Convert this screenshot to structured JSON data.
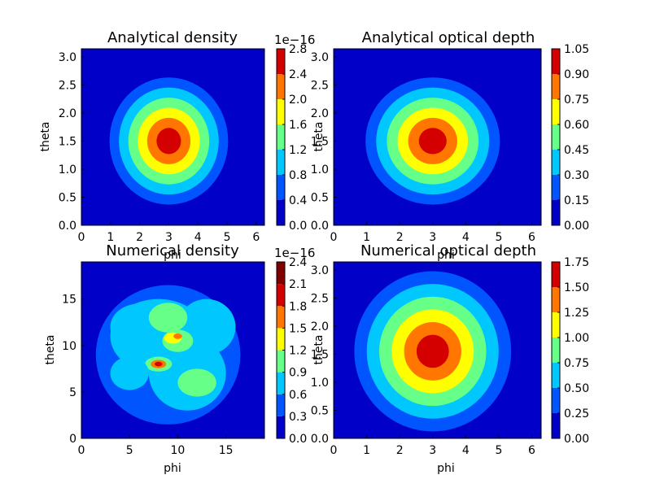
{
  "chart_data": [
    {
      "type": "contour",
      "title": "Analytical density",
      "xlabel": "phi",
      "ylabel": "theta",
      "xlim": [
        0,
        6.283
      ],
      "ylim": [
        0,
        3.1416
      ],
      "xticks": [
        "0",
        "1",
        "2",
        "3",
        "4",
        "5",
        "6"
      ],
      "yticks": [
        "0.0",
        "0.5",
        "1.0",
        "1.5",
        "2.0",
        "2.5",
        "3.0"
      ],
      "colorbar_ticks": [
        "0.0",
        "0.4",
        "0.8",
        "1.2",
        "1.6",
        "2.0",
        "2.4",
        "2.8"
      ],
      "colorbar_offset": "1e−16",
      "peak": {
        "x": 3.0,
        "y": 1.5,
        "value": 2.8
      },
      "levels": [
        0.0,
        0.4,
        0.8,
        1.2,
        1.6,
        2.0,
        2.4,
        2.8
      ]
    },
    {
      "type": "contour",
      "title": "Analytical optical depth",
      "xlabel": "phi",
      "ylabel": "theta",
      "xlim": [
        0,
        6.283
      ],
      "ylim": [
        0,
        3.1416
      ],
      "xticks": [
        "0",
        "1",
        "2",
        "3",
        "4",
        "5",
        "6"
      ],
      "yticks": [
        "0.0",
        "0.5",
        "1.0",
        "1.5",
        "2.0",
        "2.5",
        "3.0"
      ],
      "colorbar_ticks": [
        "0.00",
        "0.15",
        "0.30",
        "0.45",
        "0.60",
        "0.75",
        "0.90",
        "1.05"
      ],
      "colorbar_offset": "",
      "peak": {
        "x": 3.0,
        "y": 1.5,
        "value": 1.05
      },
      "levels": [
        0.0,
        0.15,
        0.3,
        0.45,
        0.6,
        0.75,
        0.9,
        1.05
      ]
    },
    {
      "type": "contour",
      "title": "Numerical density",
      "xlabel": "phi",
      "ylabel": "theta",
      "xlim": [
        0,
        19
      ],
      "ylim": [
        0,
        19
      ],
      "xticks": [
        "0",
        "5",
        "10",
        "15"
      ],
      "yticks": [
        "0",
        "5",
        "10",
        "15"
      ],
      "colorbar_ticks": [
        "0.0",
        "0.3",
        "0.6",
        "0.9",
        "1.2",
        "1.5",
        "1.8",
        "2.1",
        "2.4"
      ],
      "colorbar_offset": "1e−16",
      "peak": {
        "x": 8,
        "y": 8,
        "value": 2.4
      },
      "levels": [
        0.0,
        0.3,
        0.6,
        0.9,
        1.2,
        1.5,
        1.8,
        2.1,
        2.4
      ]
    },
    {
      "type": "contour",
      "title": "Numerical optical depth",
      "xlabel": "phi",
      "ylabel": "theta",
      "xlim": [
        0,
        6.283
      ],
      "ylim": [
        0,
        3.1416
      ],
      "xticks": [
        "0",
        "1",
        "2",
        "3",
        "4",
        "5",
        "6"
      ],
      "yticks": [
        "0.0",
        "0.5",
        "1.0",
        "1.5",
        "2.0",
        "2.5",
        "3.0"
      ],
      "colorbar_ticks": [
        "0.00",
        "0.25",
        "0.50",
        "0.75",
        "1.00",
        "1.25",
        "1.50",
        "1.75"
      ],
      "colorbar_offset": "",
      "peak": {
        "x": 3.0,
        "y": 1.55,
        "value": 1.75
      },
      "levels": [
        0.0,
        0.25,
        0.5,
        0.75,
        1.0,
        1.25,
        1.5,
        1.75
      ]
    }
  ],
  "colormap": [
    "#0000c8",
    "#0055ff",
    "#00c8ff",
    "#66ff88",
    "#ffff00",
    "#ff7700",
    "#d40000",
    "#800000"
  ]
}
